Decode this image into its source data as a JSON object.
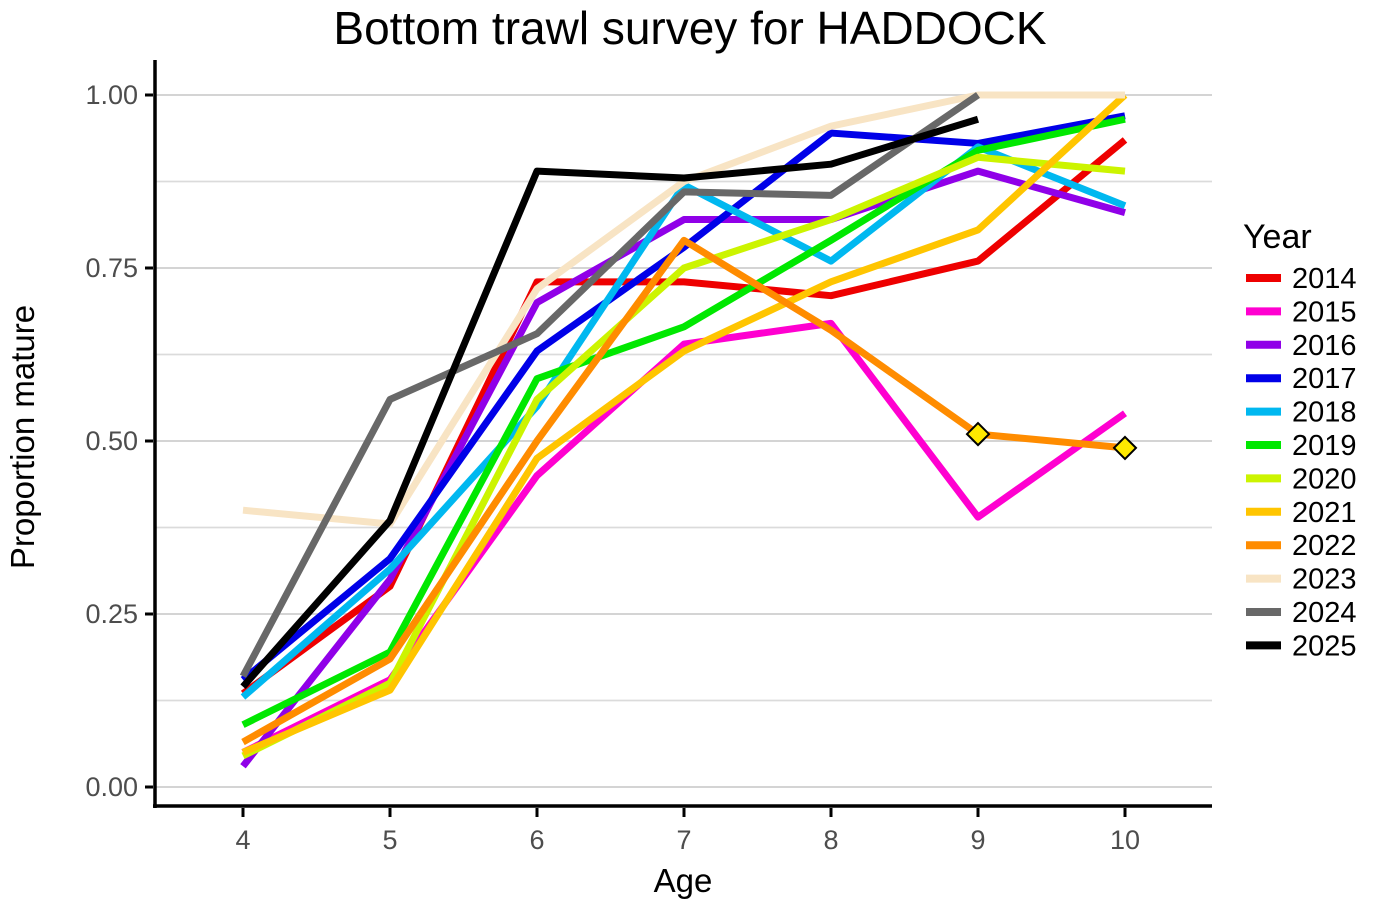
{
  "title": "Bottom trawl survey for HADDOCK",
  "axes": {
    "x": {
      "label": "Age",
      "ticks": [
        "4",
        "5",
        "6",
        "7",
        "8",
        "9",
        "10"
      ]
    },
    "y": {
      "label": "Proportion mature",
      "ticks": [
        "0.00",
        "0.25",
        "0.50",
        "0.75",
        "1.00"
      ],
      "minor_step": 0.125
    }
  },
  "legend": {
    "title": "Year",
    "position": "right"
  },
  "colors": {
    "grid_major": "#D4D4D4",
    "grid_minor": "#DBDBDB",
    "axis_line": "#000000",
    "tick_label": "#4D4D4D",
    "marker_fill": "#FFE900",
    "marker_stroke": "#000000"
  },
  "chart_data": {
    "type": "line",
    "title": "Bottom trawl survey for HADDOCK",
    "xlabel": "Age",
    "ylabel": "Proportion mature",
    "x": [
      4,
      5,
      6,
      7,
      8,
      9,
      10
    ],
    "xlim": [
      3.4,
      10.6
    ],
    "ylim": [
      0,
      1
    ],
    "grid": "horizontal only, every 0.125",
    "legend_position": "right",
    "series": [
      {
        "name": "2014",
        "color": "#EE0000",
        "values": [
          0.135,
          0.29,
          0.73,
          0.73,
          0.71,
          0.76,
          0.935
        ]
      },
      {
        "name": "2015",
        "color": "#FF00D0",
        "values": [
          0.05,
          0.155,
          0.45,
          0.64,
          0.67,
          0.39,
          0.54
        ]
      },
      {
        "name": "2016",
        "color": "#9000E8",
        "values": [
          0.03,
          0.3,
          0.7,
          0.82,
          0.82,
          0.89,
          0.83
        ]
      },
      {
        "name": "2017",
        "color": "#0000E8",
        "values": [
          0.155,
          0.33,
          0.63,
          0.78,
          0.945,
          0.93,
          0.97
        ]
      },
      {
        "name": "2018",
        "color": "#00B8F0",
        "values": [
          0.13,
          0.315,
          0.55,
          0.87,
          0.76,
          0.925,
          0.84
        ]
      },
      {
        "name": "2019",
        "color": "#00E800",
        "values": [
          0.09,
          0.195,
          0.59,
          0.665,
          0.79,
          0.92,
          0.965
        ]
      },
      {
        "name": "2020",
        "color": "#CCF400",
        "values": [
          0.045,
          0.15,
          0.56,
          0.75,
          0.82,
          0.91,
          0.89
        ]
      },
      {
        "name": "2021",
        "color": "#FFC500",
        "values": [
          0.05,
          0.14,
          0.475,
          0.63,
          0.73,
          0.805,
          1.0
        ]
      },
      {
        "name": "2022",
        "color": "#FF8C00",
        "values": [
          0.065,
          0.185,
          0.5,
          0.79,
          0.66,
          0.51,
          0.49
        ],
        "marker": "diamond",
        "marker_points": [
          [
            9,
            0.51
          ],
          [
            10,
            0.49
          ]
        ]
      },
      {
        "name": "2023",
        "color": "#F8E4C4",
        "values": [
          0.4,
          0.38,
          0.72,
          0.875,
          0.955,
          1.0,
          1.0
        ]
      },
      {
        "name": "2024",
        "color": "#686868",
        "values": [
          0.16,
          0.56,
          0.655,
          0.86,
          0.855,
          1.0,
          null
        ]
      },
      {
        "name": "2025",
        "color": "#000000",
        "values": [
          0.145,
          0.385,
          0.89,
          0.88,
          0.9,
          0.965,
          null
        ]
      }
    ]
  }
}
